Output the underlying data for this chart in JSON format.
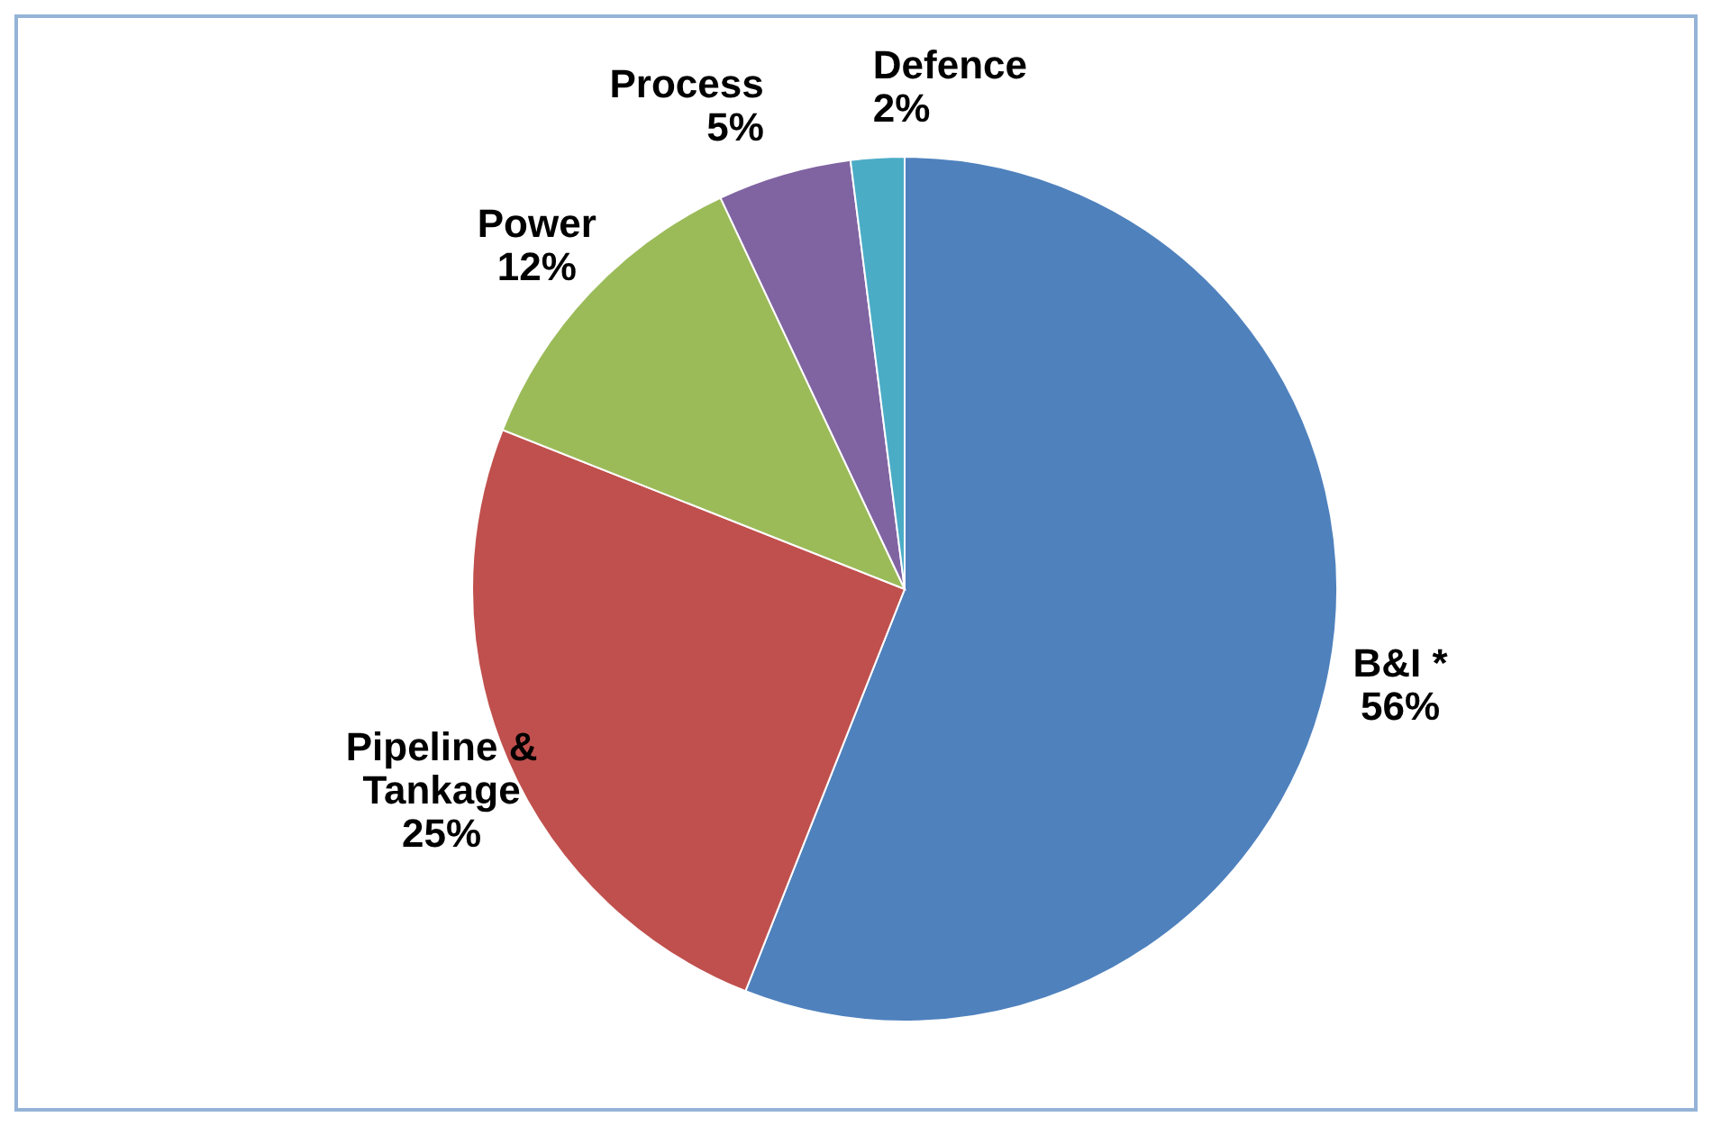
{
  "chart_data": {
    "type": "pie",
    "categories": [
      "B&I *",
      "Pipeline & Tankage",
      "Power",
      "Process",
      "Defence"
    ],
    "values": [
      56,
      25,
      12,
      5,
      2
    ],
    "colors": [
      "#4f81bd",
      "#c0504d",
      "#9bbb59",
      "#8064a2",
      "#4bacc6"
    ],
    "value_labels": [
      "56%",
      "25%",
      "12%",
      "5%",
      "2%"
    ]
  }
}
